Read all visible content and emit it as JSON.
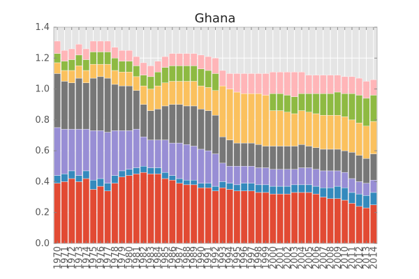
{
  "chart_data": {
    "type": "bar",
    "stacked": true,
    "title": "Ghana",
    "xlabel": "",
    "ylabel": "",
    "ylim": [
      0,
      1.4
    ],
    "yticks": [
      "0.0",
      "0.2",
      "0.4",
      "0.6",
      "0.8",
      "1.0",
      "1.2",
      "1.4"
    ],
    "grid": true,
    "legend": "none",
    "categories": [
      "1970",
      "1971",
      "1972",
      "1973",
      "1974",
      "1975",
      "1976",
      "1977",
      "1978",
      "1979",
      "1980",
      "1981",
      "1982",
      "1983",
      "1984",
      "1985",
      "1986",
      "1987",
      "1988",
      "1989",
      "1990",
      "1991",
      "1992",
      "1993",
      "1994",
      "1995",
      "1996",
      "1997",
      "1998",
      "1999",
      "2000",
      "2001",
      "2002",
      "2003",
      "2004",
      "2005",
      "2006",
      "2007",
      "2008",
      "2009",
      "2010",
      "2011",
      "2012",
      "2013",
      "2014"
    ],
    "colors": [
      "#E24A33",
      "#348ABD",
      "#988ED5",
      "#777777",
      "#FBC15E",
      "#8EBA42",
      "#FFB5B8"
    ],
    "series": [
      {
        "values": [
          0.39,
          0.4,
          0.42,
          0.4,
          0.42,
          0.35,
          0.37,
          0.34,
          0.39,
          0.43,
          0.44,
          0.45,
          0.46,
          0.45,
          0.45,
          0.42,
          0.41,
          0.39,
          0.38,
          0.38,
          0.36,
          0.36,
          0.34,
          0.36,
          0.35,
          0.34,
          0.34,
          0.34,
          0.33,
          0.33,
          0.32,
          0.32,
          0.32,
          0.33,
          0.33,
          0.33,
          0.32,
          0.3,
          0.29,
          0.29,
          0.28,
          0.26,
          0.24,
          0.23,
          0.25
        ]
      },
      {
        "values": [
          0.05,
          0.05,
          0.05,
          0.04,
          0.05,
          0.06,
          0.05,
          0.05,
          0.05,
          0.04,
          0.04,
          0.04,
          0.04,
          0.04,
          0.04,
          0.04,
          0.03,
          0.03,
          0.03,
          0.03,
          0.03,
          0.03,
          0.03,
          0.04,
          0.04,
          0.04,
          0.05,
          0.05,
          0.05,
          0.05,
          0.05,
          0.05,
          0.05,
          0.05,
          0.05,
          0.05,
          0.05,
          0.06,
          0.07,
          0.08,
          0.08,
          0.07,
          0.08,
          0.08,
          0.08
        ]
      },
      {
        "values": [
          0.31,
          0.29,
          0.27,
          0.3,
          0.27,
          0.32,
          0.31,
          0.33,
          0.29,
          0.26,
          0.25,
          0.25,
          0.19,
          0.18,
          0.18,
          0.21,
          0.21,
          0.23,
          0.23,
          0.22,
          0.22,
          0.21,
          0.21,
          0.12,
          0.11,
          0.12,
          0.11,
          0.11,
          0.11,
          0.11,
          0.11,
          0.11,
          0.11,
          0.1,
          0.11,
          0.11,
          0.11,
          0.11,
          0.11,
          0.1,
          0.1,
          0.09,
          0.08,
          0.08,
          0.08
        ]
      },
      {
        "values": [
          0.35,
          0.31,
          0.3,
          0.33,
          0.3,
          0.34,
          0.35,
          0.35,
          0.3,
          0.29,
          0.29,
          0.25,
          0.21,
          0.19,
          0.2,
          0.22,
          0.25,
          0.25,
          0.25,
          0.26,
          0.26,
          0.26,
          0.25,
          0.17,
          0.17,
          0.15,
          0.15,
          0.15,
          0.15,
          0.14,
          0.15,
          0.15,
          0.15,
          0.15,
          0.15,
          0.14,
          0.14,
          0.14,
          0.14,
          0.14,
          0.14,
          0.17,
          0.17,
          0.16,
          0.17
        ]
      },
      {
        "values": [
          0.07,
          0.07,
          0.08,
          0.08,
          0.08,
          0.09,
          0.08,
          0.09,
          0.09,
          0.09,
          0.09,
          0.09,
          0.12,
          0.14,
          0.15,
          0.15,
          0.15,
          0.15,
          0.16,
          0.16,
          0.15,
          0.15,
          0.16,
          0.33,
          0.33,
          0.33,
          0.32,
          0.32,
          0.33,
          0.33,
          0.23,
          0.23,
          0.22,
          0.21,
          0.22,
          0.22,
          0.22,
          0.22,
          0.22,
          0.22,
          0.22,
          0.21,
          0.21,
          0.21,
          0.21
        ]
      },
      {
        "values": [
          0.06,
          0.06,
          0.07,
          0.07,
          0.07,
          0.08,
          0.08,
          0.08,
          0.08,
          0.07,
          0.07,
          0.07,
          0.07,
          0.08,
          0.09,
          0.1,
          0.1,
          0.1,
          0.1,
          0.1,
          0.11,
          0.11,
          0.11,
          0.0,
          0.0,
          0.0,
          0.0,
          0.0,
          0.0,
          0.0,
          0.11,
          0.11,
          0.11,
          0.11,
          0.11,
          0.12,
          0.13,
          0.14,
          0.14,
          0.15,
          0.15,
          0.17,
          0.18,
          0.18,
          0.17
        ]
      },
      {
        "values": [
          0.08,
          0.07,
          0.07,
          0.07,
          0.07,
          0.07,
          0.07,
          0.07,
          0.07,
          0.07,
          0.07,
          0.06,
          0.08,
          0.07,
          0.07,
          0.07,
          0.08,
          0.08,
          0.08,
          0.08,
          0.09,
          0.09,
          0.1,
          0.1,
          0.1,
          0.12,
          0.13,
          0.13,
          0.13,
          0.14,
          0.14,
          0.14,
          0.15,
          0.16,
          0.14,
          0.12,
          0.12,
          0.12,
          0.12,
          0.11,
          0.11,
          0.11,
          0.11,
          0.11,
          0.1
        ]
      }
    ]
  }
}
